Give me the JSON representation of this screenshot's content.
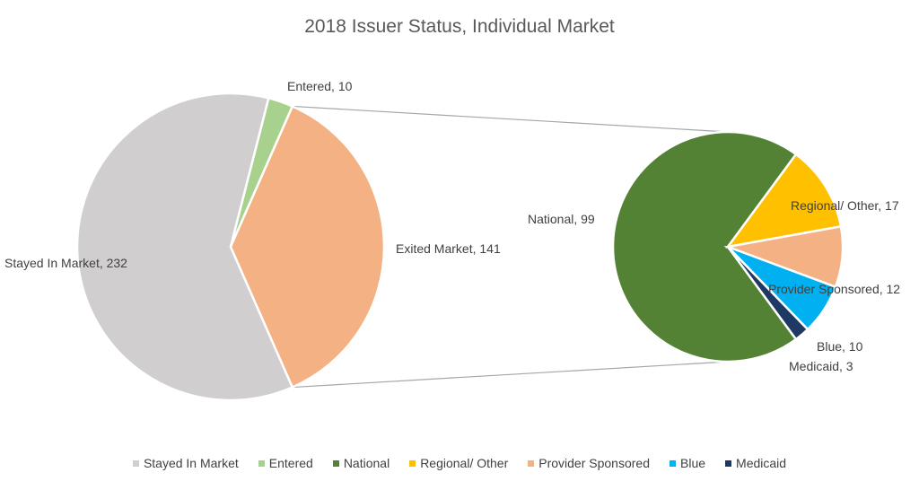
{
  "chart_data": {
    "type": "pie",
    "subtype": "pie-of-pie",
    "title": "2018 Issuer Status, Individual Market",
    "main_pie": [
      {
        "name": "Stayed In Market",
        "value": 232,
        "label": "Stayed In Market, 232",
        "color": "#d0cece"
      },
      {
        "name": "Entered",
        "value": 10,
        "label": "Entered, 10",
        "color": "#a9d18e"
      },
      {
        "name": "Exited Market",
        "value": 141,
        "label": "Exited Market, 141",
        "color": "#f4b183"
      }
    ],
    "exploded_slice": "Exited Market",
    "secondary_pie": [
      {
        "name": "National",
        "value": 99,
        "label": "National, 99",
        "color": "#548235"
      },
      {
        "name": "Regional/ Other",
        "value": 17,
        "label": "Regional/ Other, 17",
        "color": "#ffc000"
      },
      {
        "name": "Provider Sponsored",
        "value": 12,
        "label": "Provider Sponsored, 12",
        "color": "#f4b183"
      },
      {
        "name": "Blue",
        "value": 10,
        "label": "Blue, 10",
        "color": "#00b0f0"
      },
      {
        "name": "Medicaid",
        "value": 3,
        "label": "Medicaid, 3",
        "color": "#203864"
      }
    ],
    "legend": {
      "position": "bottom",
      "entries": [
        {
          "name": "Stayed In Market",
          "color": "#d0cece"
        },
        {
          "name": "Entered",
          "color": "#a9d18e"
        },
        {
          "name": "National",
          "color": "#548235"
        },
        {
          "name": "Regional/ Other",
          "color": "#ffc000"
        },
        {
          "name": "Provider Sponsored",
          "color": "#f4b183"
        },
        {
          "name": "Blue",
          "color": "#00b0f0"
        },
        {
          "name": "Medicaid",
          "color": "#203864"
        }
      ]
    }
  }
}
